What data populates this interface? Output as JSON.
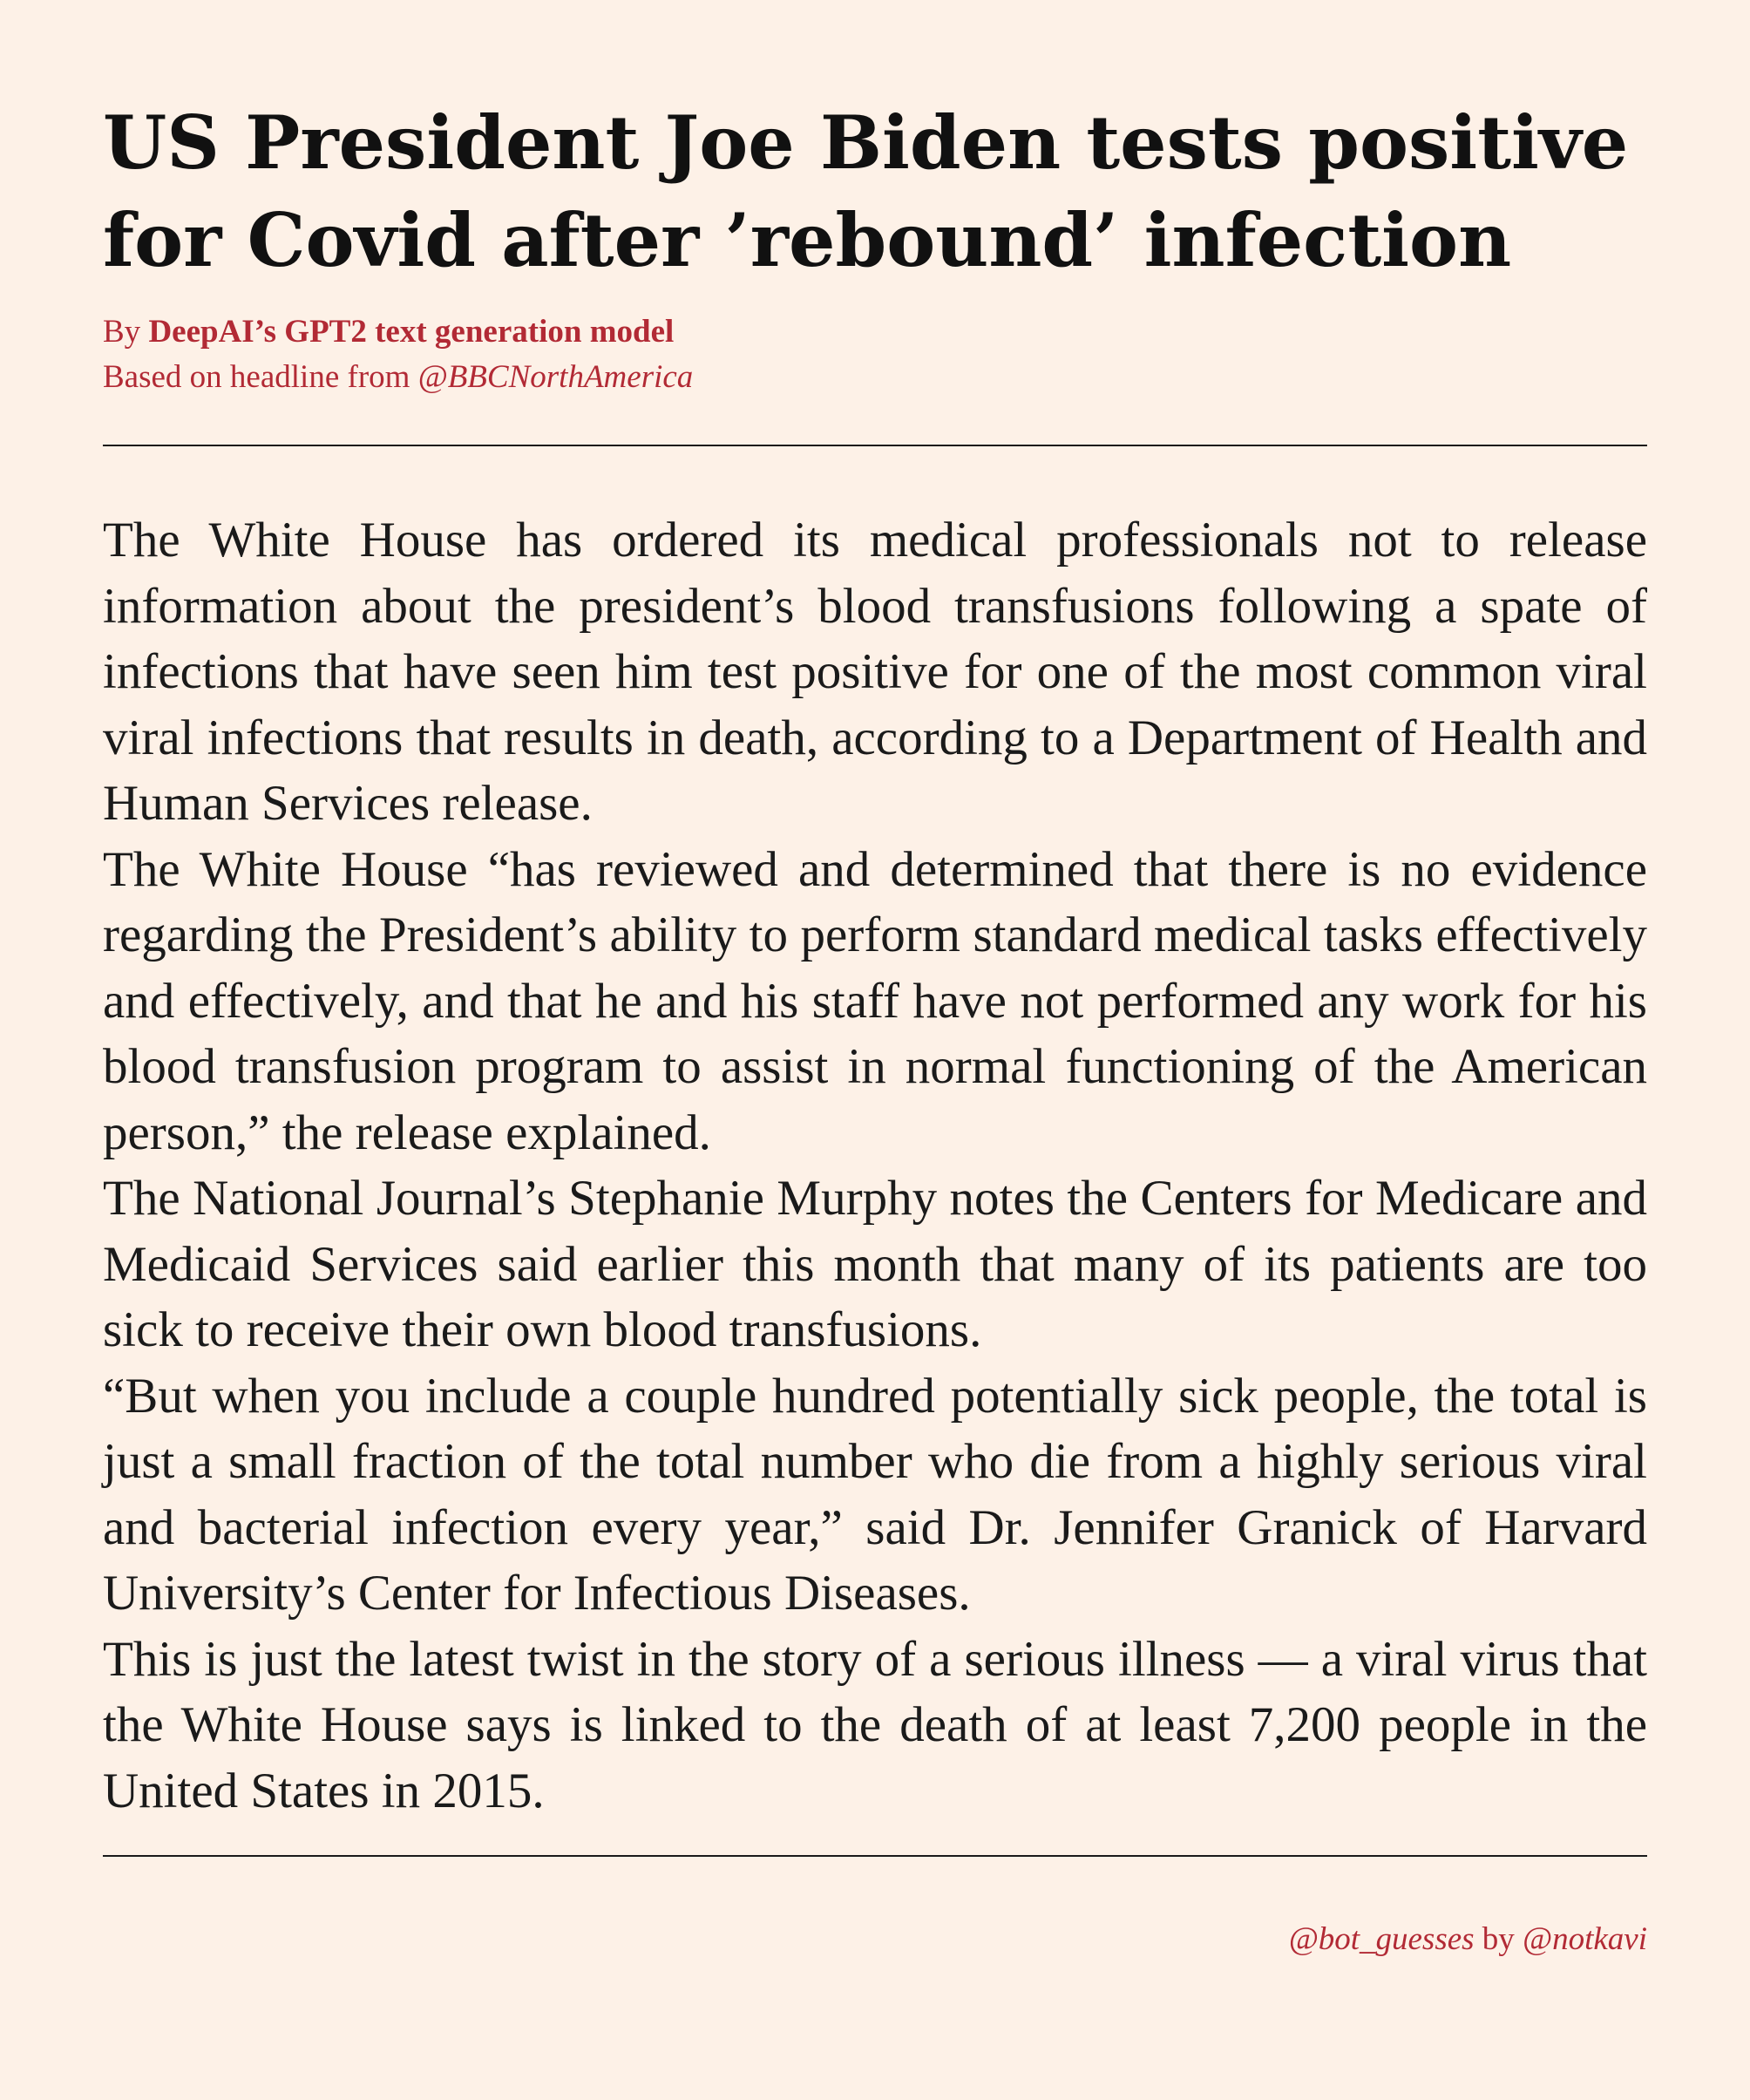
{
  "article": {
    "headline": "US President Joe Biden tests positive for Covid after ’rebound’ infection",
    "byline": {
      "prefix": "By ",
      "author": "DeepAI’s GPT2 text generation model"
    },
    "source": {
      "prefix": "Based on headline from ",
      "handle": "@BBCNorthAmerica"
    },
    "paragraphs": [
      "The White House has ordered its medical professionals not to release information about the president’s blood transfusions following a spate of infections that have seen him test positive for one of the most common viral viral infections that results in death, according to a Department of Health and Human Services release.",
      "The White House “has reviewed and determined that there is no evidence regarding the President’s ability to perform standard medical tasks effectively and effectively, and that he and his staff have not performed any work for his blood transfusion program to assist in normal functioning of the American person,” the release explained.",
      "The National Journal’s Stephanie Murphy notes the Centers for Medicare and Medicaid Services said earlier this month that many of its patients are too sick to receive their own blood transfusions.",
      "“But when you include a couple hundred potentially sick people, the total is just a small fraction of the total number who die from a highly serious viral and bacterial infection every year,” said Dr. Jennifer Granick of Harvard University’s Center for Infectious Diseases.",
      "This is just the latest twist in the story of a serious illness — a viral virus that the White House says is linked to the death of at least 7,200 people in the United States in 2015."
    ]
  },
  "footer": {
    "bot_handle": "@bot_guesses",
    "by": " by ",
    "author_handle": "@notkavi"
  },
  "colors": {
    "background": "#fdf1e7",
    "accent": "#b22a35",
    "text": "#1a1a1a"
  }
}
